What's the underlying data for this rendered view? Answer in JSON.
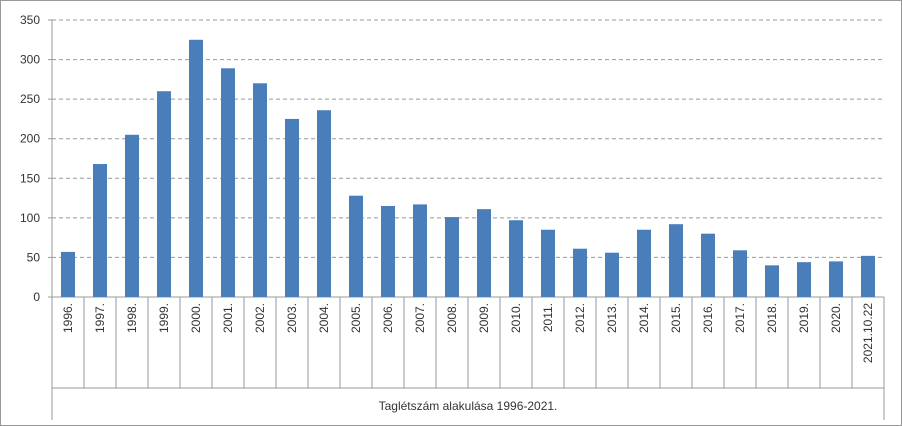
{
  "chart_data": {
    "type": "bar",
    "x_label": "Taglétszám alakulása 1996-2021.",
    "categories": [
      "1996.",
      "1997.",
      "1998.",
      "1999.",
      "2000.",
      "2001.",
      "2002.",
      "2003.",
      "2004.",
      "2005.",
      "2006.",
      "2007.",
      "2008.",
      "2009.",
      "2010.",
      "2011.",
      "2012.",
      "2013.",
      "2014.",
      "2015.",
      "2016.",
      "2017.",
      "2018.",
      "2019.",
      "2020.",
      "2021.10.22"
    ],
    "values": [
      57,
      168,
      205,
      260,
      325,
      289,
      270,
      225,
      236,
      128,
      115,
      117,
      101,
      111,
      97,
      85,
      61,
      56,
      85,
      92,
      80,
      59,
      40,
      44,
      45,
      52
    ],
    "color": "#4a7ebb",
    "ylim": [
      0,
      350
    ],
    "yticks": [
      0,
      50,
      100,
      150,
      200,
      250,
      300,
      350
    ],
    "grid": true
  }
}
